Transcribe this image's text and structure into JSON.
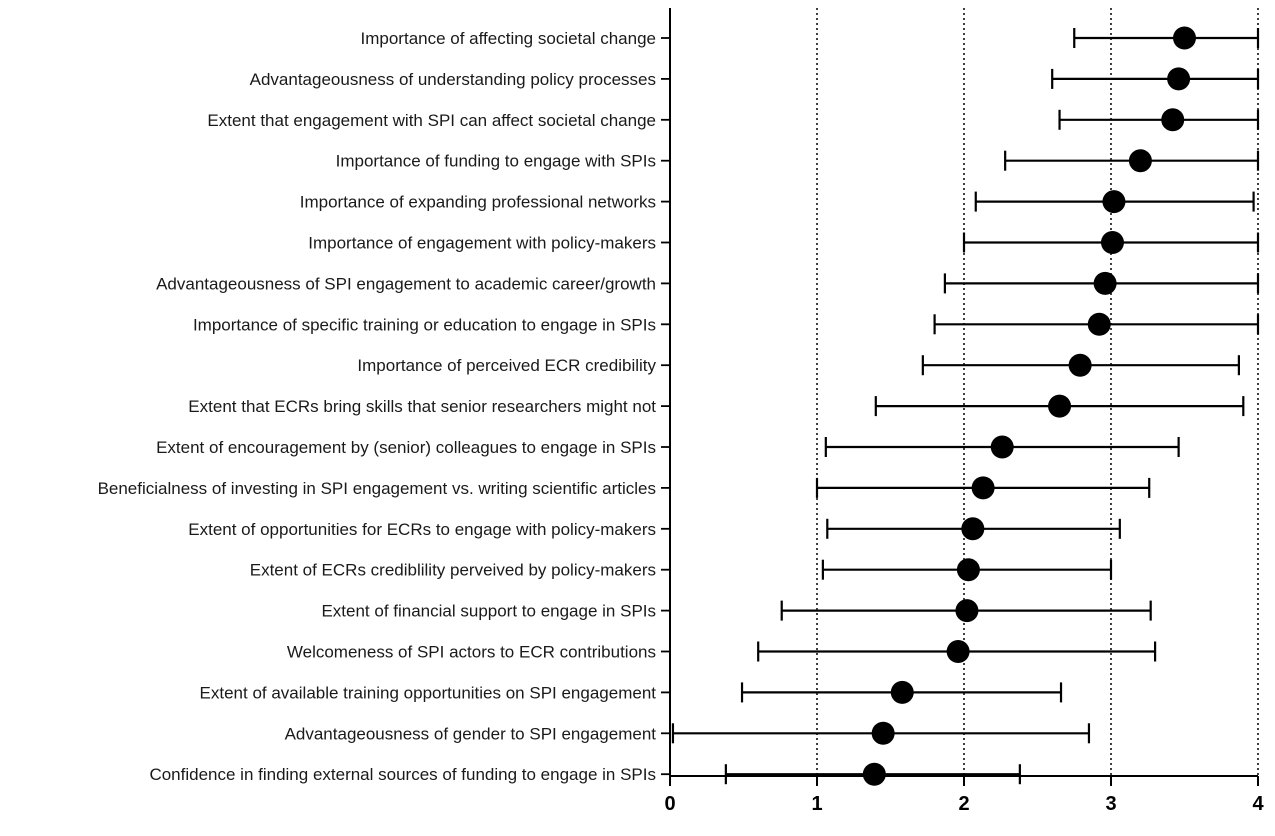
{
  "chart_data": {
    "type": "scatter",
    "subtype": "dot-with-error-bars",
    "orientation": "horizontal",
    "categories": [
      "Importance of affecting societal change",
      "Advantageousness of understanding policy processes",
      "Extent that engagement with SPI can affect societal change",
      "Importance of funding to engage with SPIs",
      "Importance of expanding professional networks",
      "Importance of engagement with policy-makers",
      "Advantageousness of SPI engagement to academic career/growth",
      "Importance of specific training or education to engage in SPIs",
      "Importance of perceived ECR credibility",
      "Extent that ECRs bring skills that senior researchers might not",
      "Extent of encouragement by (senior) colleagues to engage in SPIs",
      "Beneficialness of investing in SPI engagement vs. writing scientific articles",
      "Extent of opportunities for ECRs to engage with policy-makers",
      "Extent of ECRs crediblility perveived by policy-makers",
      "Extent of financial support to engage in SPIs",
      "Welcomeness of SPI actors to ECR contributions",
      "Extent of available training opportunities on SPI engagement",
      "Advantageousness of gender to SPI engagement",
      "Confidence in finding external sources of funding to engage in SPIs"
    ],
    "values": [
      3.5,
      3.46,
      3.42,
      3.2,
      3.02,
      3.01,
      2.96,
      2.92,
      2.79,
      2.65,
      2.26,
      2.13,
      2.06,
      2.03,
      2.02,
      1.96,
      1.58,
      1.45,
      1.39
    ],
    "error_low": [
      2.75,
      2.6,
      2.65,
      2.28,
      2.08,
      2.0,
      1.87,
      1.8,
      1.72,
      1.4,
      1.06,
      1.0,
      1.07,
      1.04,
      0.76,
      0.6,
      0.49,
      0.02,
      0.38
    ],
    "error_high": [
      4.0,
      4.0,
      4.0,
      4.0,
      3.97,
      4.0,
      4.0,
      4.0,
      3.87,
      3.9,
      3.46,
      3.26,
      3.06,
      3.0,
      3.27,
      3.3,
      2.66,
      2.85,
      2.38
    ],
    "xlim": [
      0,
      4
    ],
    "xticks": [
      "0",
      "1",
      "2",
      "3",
      "4"
    ],
    "reference_lines": [
      1,
      2,
      3,
      4
    ],
    "title": "",
    "xlabel": "",
    "ylabel": "",
    "grid": false,
    "colors": {
      "marker": "#000000",
      "line": "#000000"
    }
  }
}
